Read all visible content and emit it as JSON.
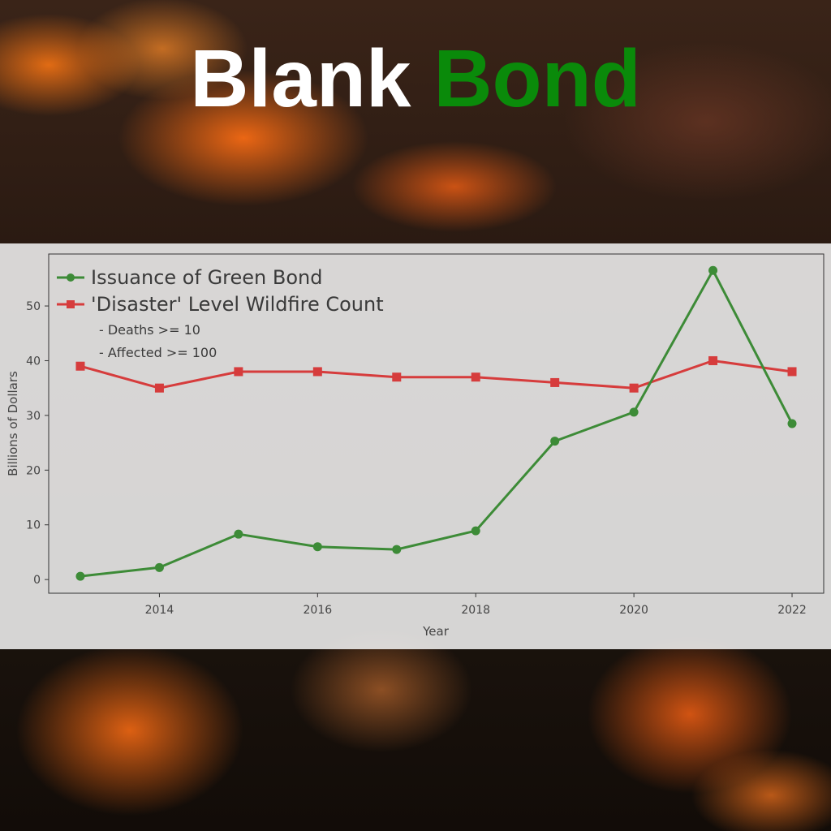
{
  "poster": {
    "title_part1": "Blank",
    "title_part2": "Bond",
    "title_part1_color": "#ffffff",
    "title_part2_color": "#0a8a0a"
  },
  "chart_data": {
    "type": "line",
    "title": "",
    "xlabel": "Year",
    "ylabel": "Billions of Dollars",
    "x": [
      2013,
      2014,
      2015,
      2016,
      2017,
      2018,
      2019,
      2020,
      2021,
      2022
    ],
    "xlim": [
      2012.6,
      2022.4
    ],
    "ylim": [
      -2.5,
      59.5
    ],
    "xticks": [
      2014,
      2016,
      2018,
      2020,
      2022
    ],
    "yticks": [
      0,
      10,
      20,
      30,
      40,
      50
    ],
    "grid": false,
    "legend_position": "top-left",
    "series": [
      {
        "name": "Issuance of Green Bond",
        "marker": "circle",
        "color": "#3d8b37",
        "values": [
          0.6,
          2.2,
          8.3,
          6.0,
          5.5,
          8.9,
          25.3,
          30.6,
          56.5,
          28.5
        ]
      },
      {
        "name": "'Disaster' Level Wildfire Count",
        "marker": "square",
        "color": "#d63c3c",
        "values": [
          39,
          35,
          38,
          38,
          37,
          37,
          36,
          35,
          40,
          38
        ]
      }
    ],
    "legend_notes": [
      "- Deaths >= 10",
      "- Affected >= 100"
    ]
  }
}
